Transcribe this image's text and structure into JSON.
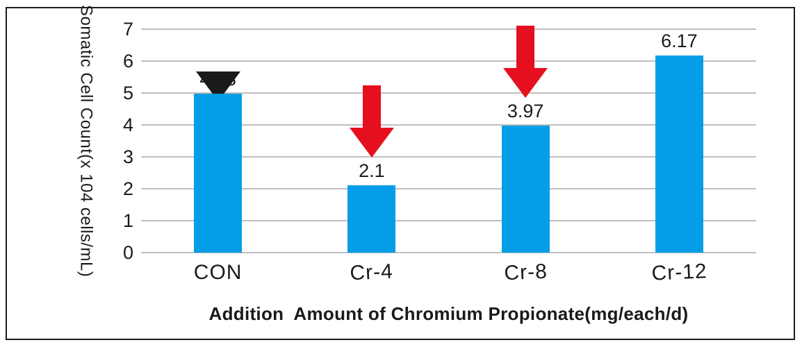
{
  "chart_data": {
    "type": "bar",
    "categories": [
      "CON",
      "Cr-4",
      "Cr-8",
      "Cr-12"
    ],
    "values": [
      4.98,
      2.1,
      3.97,
      6.17
    ],
    "value_labels": [
      "4.98",
      "2.1",
      "3.97",
      "6.17"
    ],
    "decrease_arrows": [
      false,
      true,
      true,
      false
    ],
    "xlabel": "Addition  Amount of Chromium Propionate(mg/each/d)",
    "ylabel_line1": "Somatic Cell Count",
    "ylabel_line2": "(x 104 cells/mL)",
    "yticks": [
      0,
      1,
      2,
      3,
      4,
      5,
      6,
      7
    ],
    "ylim": [
      0,
      7
    ],
    "grid": true,
    "legend": "none",
    "colors": {
      "bar": "#049EE8",
      "arrow": "#E50F1E",
      "gridline": "#BFBFBF",
      "text": "#1A1A1A",
      "border": "#1C1C1C"
    }
  }
}
